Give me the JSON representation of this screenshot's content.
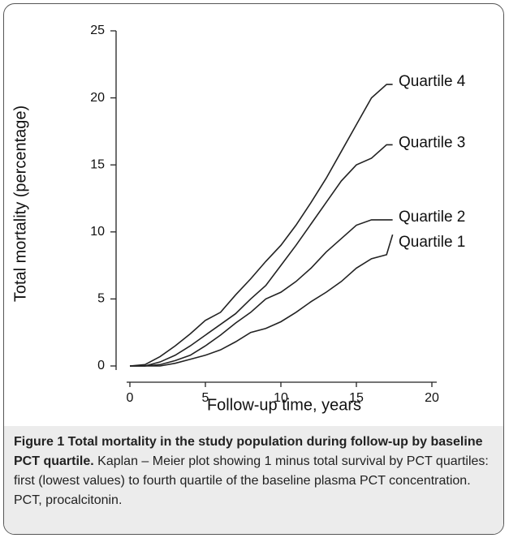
{
  "chart_data": {
    "type": "line",
    "xlabel": "Follow-up time, years",
    "ylabel": "Total mortality (percentage)",
    "x": [
      0,
      1,
      2,
      3,
      4,
      5,
      6,
      7,
      8,
      9,
      10,
      11,
      12,
      13,
      14,
      15,
      16,
      17,
      17.4
    ],
    "series": [
      {
        "name": "Quartile 1",
        "color": "#222222",
        "values": [
          0,
          0,
          0,
          0.2,
          0.5,
          0.8,
          1.2,
          1.8,
          2.5,
          2.8,
          3.3,
          4.0,
          4.8,
          5.5,
          6.3,
          7.3,
          8.0,
          8.3,
          9.8
        ]
      },
      {
        "name": "Quartile 2",
        "color": "#222222",
        "values": [
          0,
          0,
          0.1,
          0.4,
          0.8,
          1.5,
          2.3,
          3.2,
          4.0,
          5.0,
          5.5,
          6.3,
          7.3,
          8.5,
          9.5,
          10.5,
          10.9,
          10.9,
          10.9
        ]
      },
      {
        "name": "Quartile 3",
        "color": "#222222",
        "values": [
          0,
          0,
          0.3,
          0.8,
          1.5,
          2.3,
          3.1,
          3.9,
          5.0,
          6.0,
          7.5,
          9.0,
          10.6,
          12.2,
          13.8,
          15.0,
          15.5,
          16.5,
          16.5
        ]
      },
      {
        "name": "Quartile 4",
        "color": "#222222",
        "values": [
          0,
          0.1,
          0.7,
          1.5,
          2.4,
          3.4,
          4.0,
          5.3,
          6.5,
          7.8,
          9.0,
          10.5,
          12.2,
          14.0,
          16.0,
          18.0,
          20.0,
          21,
          21
        ]
      }
    ],
    "xlim": [
      0,
      20
    ],
    "xticks": [
      0,
      5,
      10,
      15,
      20
    ],
    "ylim": [
      0,
      25
    ],
    "yticks": [
      0,
      5,
      10,
      15,
      20,
      25
    ],
    "grid": false
  },
  "caption": {
    "title": "Figure 1 Total mortality in the study population during follow-up by baseline PCT quartile.",
    "text": "Kaplan – Meier plot showing 1 minus total survival by PCT quartiles: first (lowest values) to fourth quartile of the baseline plasma PCT concentration. PCT, procalcitonin."
  }
}
